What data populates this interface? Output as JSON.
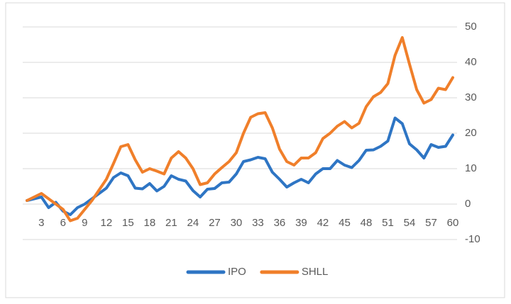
{
  "chart_data": {
    "type": "line",
    "categories": [
      null,
      null,
      "3",
      null,
      null,
      "6",
      null,
      null,
      "9",
      null,
      null,
      "12",
      null,
      null,
      "15",
      null,
      null,
      "18",
      null,
      null,
      "21",
      null,
      null,
      "24",
      null,
      null,
      "27",
      null,
      null,
      "30",
      null,
      null,
      "33",
      null,
      null,
      "36",
      null,
      null,
      "39",
      null,
      null,
      "42",
      null,
      null,
      "45",
      null,
      null,
      "48",
      null,
      null,
      "51",
      null,
      null,
      "54",
      null,
      null,
      "57",
      null,
      null,
      "60"
    ],
    "series": [
      {
        "name": "IPO",
        "color": "#2e75c4",
        "values": [
          1,
          1.5,
          2,
          -1,
          0.5,
          -2,
          -3,
          -1,
          0,
          1.5,
          3,
          4.5,
          7.5,
          8.8,
          8,
          4.5,
          4.3,
          5.8,
          3.7,
          5,
          8,
          7,
          6.5,
          3.8,
          2,
          4.2,
          4.4,
          6,
          6.2,
          8.5,
          12,
          12.5,
          13.2,
          12.8,
          9,
          7,
          4.8,
          6,
          7,
          6,
          8.5,
          10,
          10,
          12.3,
          11,
          10.3,
          12.3,
          15.2,
          15.3,
          16.3,
          17.8,
          24.3,
          22.7,
          17,
          15.3,
          13,
          16.8,
          16,
          16.3,
          19.5
        ]
      },
      {
        "name": "SHLL",
        "color": "#f07f2a",
        "values": [
          1,
          2,
          3,
          1.5,
          0,
          -1.5,
          -4.7,
          -4,
          -1.5,
          1,
          4,
          7,
          11.5,
          16.2,
          16.8,
          12.5,
          9,
          10,
          9.3,
          8.5,
          13,
          14.8,
          13,
          10,
          5.5,
          6,
          8.5,
          10.3,
          12,
          14.5,
          20,
          24.5,
          25.5,
          25.8,
          21.5,
          15.5,
          12,
          11,
          13,
          13,
          14.5,
          18.5,
          20,
          22,
          23.3,
          21.5,
          22.8,
          27.5,
          30.3,
          31.5,
          34,
          42,
          47,
          39.5,
          32.3,
          28.5,
          29.5,
          32.7,
          32.3,
          35.7
        ]
      }
    ],
    "ylim": [
      -10,
      50
    ],
    "yticks": [
      -10,
      0,
      10,
      20,
      30,
      40,
      50
    ],
    "grid": true,
    "legend": "bottom"
  }
}
